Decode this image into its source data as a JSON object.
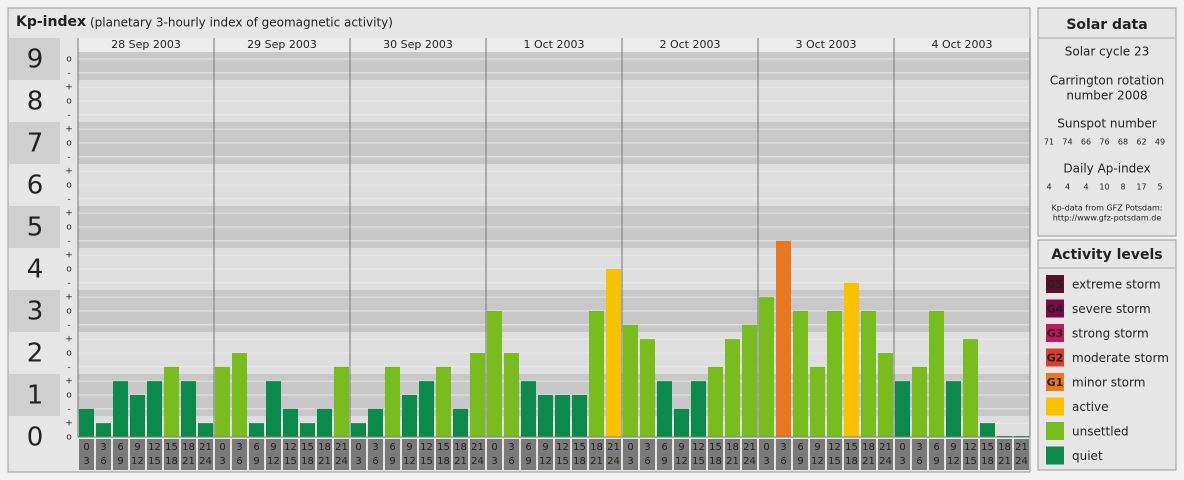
{
  "header": {
    "title": "Kp-index",
    "subtitle": "(planetary 3-hourly index of geomagnetic activity)"
  },
  "chart_data": {
    "type": "bar",
    "ylim": [
      0,
      9.5
    ],
    "yticks": [
      0,
      1,
      2,
      3,
      4,
      5,
      6,
      7,
      8,
      9
    ],
    "minor_ticks": [
      {
        "value": 0,
        "label": "o"
      },
      {
        "value": 0.33,
        "label": "+"
      },
      {
        "value": 0.67,
        "label": "-"
      },
      {
        "value": 1,
        "label": "o"
      },
      {
        "value": 1.33,
        "label": "+"
      },
      {
        "value": 1.67,
        "label": "-"
      },
      {
        "value": 2,
        "label": "o"
      },
      {
        "value": 2.33,
        "label": "+"
      },
      {
        "value": 2.67,
        "label": "-"
      },
      {
        "value": 3,
        "label": "o"
      },
      {
        "value": 3.33,
        "label": "+"
      },
      {
        "value": 3.67,
        "label": "-"
      },
      {
        "value": 4,
        "label": "o"
      },
      {
        "value": 4.33,
        "label": "+"
      },
      {
        "value": 4.67,
        "label": "-"
      },
      {
        "value": 5,
        "label": "o"
      },
      {
        "value": 5.33,
        "label": "+"
      },
      {
        "value": 5.67,
        "label": "-"
      },
      {
        "value": 6,
        "label": "o"
      },
      {
        "value": 6.33,
        "label": "+"
      },
      {
        "value": 6.67,
        "label": "-"
      },
      {
        "value": 7,
        "label": "o"
      },
      {
        "value": 7.33,
        "label": "+"
      },
      {
        "value": 7.67,
        "label": "-"
      },
      {
        "value": 8,
        "label": "o"
      },
      {
        "value": 8.33,
        "label": "+"
      },
      {
        "value": 8.67,
        "label": "-"
      },
      {
        "value": 9,
        "label": "o"
      }
    ],
    "grid": true,
    "hours": [
      [
        "0",
        "3"
      ],
      [
        "3",
        "6"
      ],
      [
        "6",
        "9"
      ],
      [
        "9",
        "12"
      ],
      [
        "12",
        "15"
      ],
      [
        "15",
        "18"
      ],
      [
        "18",
        "21"
      ],
      [
        "21",
        "24"
      ]
    ],
    "days": [
      {
        "label": "28 Sep 2003",
        "values": [
          0.67,
          0.33,
          1.33,
          1,
          1.33,
          1.67,
          1.33,
          0.33
        ],
        "colors": [
          "#0b8a4c",
          "#0b8a4c",
          "#0b8a4c",
          "#0b8a4c",
          "#0b8a4c",
          "#78bc20",
          "#0b8a4c",
          "#0b8a4c"
        ]
      },
      {
        "label": "29 Sep 2003",
        "values": [
          1.67,
          2,
          0.33,
          1.33,
          0.67,
          0.33,
          0.67,
          1.67
        ],
        "colors": [
          "#78bc20",
          "#78bc20",
          "#0b8a4c",
          "#0b8a4c",
          "#0b8a4c",
          "#0b8a4c",
          "#0b8a4c",
          "#78bc20"
        ]
      },
      {
        "label": "30 Sep 2003",
        "values": [
          0.33,
          0.67,
          1.67,
          1,
          1.33,
          1.67,
          0.67,
          2
        ],
        "colors": [
          "#0b8a4c",
          "#0b8a4c",
          "#78bc20",
          "#0b8a4c",
          "#0b8a4c",
          "#78bc20",
          "#0b8a4c",
          "#78bc20"
        ]
      },
      {
        "label": "1 Oct 2003",
        "values": [
          3,
          2,
          1.33,
          1,
          1,
          1,
          3,
          4
        ],
        "colors": [
          "#78bc20",
          "#78bc20",
          "#0b8a4c",
          "#0b8a4c",
          "#0b8a4c",
          "#0b8a4c",
          "#78bc20",
          "#f8c200"
        ]
      },
      {
        "label": "2 Oct 2003",
        "values": [
          2.67,
          2.33,
          1.33,
          0.67,
          1.33,
          1.67,
          2.33,
          2.67
        ],
        "colors": [
          "#78bc20",
          "#78bc20",
          "#0b8a4c",
          "#0b8a4c",
          "#0b8a4c",
          "#78bc20",
          "#78bc20",
          "#78bc20"
        ]
      },
      {
        "label": "3 Oct 2003",
        "values": [
          3.33,
          4.67,
          3,
          1.67,
          3,
          3.67,
          3,
          2
        ],
        "colors": [
          "#78bc20",
          "#e87722",
          "#78bc20",
          "#78bc20",
          "#78bc20",
          "#f8c200",
          "#78bc20",
          "#78bc20"
        ]
      },
      {
        "label": "4 Oct 2003",
        "values": [
          1.33,
          1.67,
          3,
          1.33,
          2.33,
          0.33,
          0,
          0
        ],
        "colors": [
          "#0b8a4c",
          "#78bc20",
          "#78bc20",
          "#0b8a4c",
          "#78bc20",
          "#0b8a4c",
          "#0b8a4c",
          "#0b8a4c"
        ]
      }
    ]
  },
  "solar_data": {
    "title": "Solar data",
    "cycle": "Solar cycle 23",
    "carrington": [
      "Carrington rotation",
      "number 2008"
    ],
    "sunspot_title": "Sunspot number",
    "sunspot": [
      71,
      74,
      66,
      76,
      68,
      62,
      49
    ],
    "ap_title": "Daily Ap-index",
    "ap": [
      4,
      4,
      4,
      10,
      8,
      17,
      5
    ],
    "source": [
      "Kp-data from GFZ Potsdam:",
      "http://www.gfz-potsdam.de"
    ]
  },
  "activity_levels": {
    "title": "Activity levels",
    "items": [
      {
        "code": "G5",
        "label": "extreme storm",
        "color": "#5a0f2a"
      },
      {
        "code": "G4",
        "label": "severe storm",
        "color": "#7b0a44"
      },
      {
        "code": "G3",
        "label": "strong storm",
        "color": "#c2185b"
      },
      {
        "code": "G2",
        "label": "moderate storm",
        "color": "#d9402b"
      },
      {
        "code": "G1",
        "label": "minor storm",
        "color": "#e87722"
      },
      {
        "label": "active",
        "color": "#f8c200"
      },
      {
        "label": "unsettled",
        "color": "#78bc20"
      },
      {
        "label": "quiet",
        "color": "#0b8a4c"
      }
    ]
  }
}
